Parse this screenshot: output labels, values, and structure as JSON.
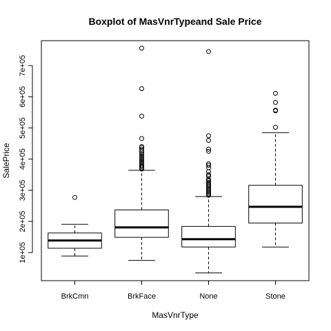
{
  "chart_data": {
    "type": "boxplot",
    "title": "Boxplot of MasVnrTypeand Sale Price",
    "xlabel": "MasVnrType",
    "ylabel": "SalePrice",
    "ylim": [
      10000,
      780000
    ],
    "yticks": [
      100000,
      200000,
      300000,
      400000,
      500000,
      600000,
      700000
    ],
    "ytick_labels": [
      "1e+05",
      "2e+05",
      "3e+05",
      "4e+05",
      "5e+05",
      "6e+05",
      "7e+05"
    ],
    "categories": [
      "BrkCmn",
      "BrkFace",
      "None",
      "Stone"
    ],
    "boxes": [
      {
        "category": "BrkCmn",
        "whisker_low": 89000,
        "q1": 114000,
        "median": 139000,
        "q3": 163000,
        "whisker_high": 191000,
        "outliers": [
          277000
        ]
      },
      {
        "category": "BrkFace",
        "whisker_low": 75000,
        "q1": 149000,
        "median": 181000,
        "q3": 237000,
        "whisker_high": 364000,
        "outliers": [
          368000,
          372000,
          376000,
          380000,
          385000,
          390000,
          395000,
          400000,
          405000,
          410000,
          415000,
          420000,
          426000,
          432000,
          438000,
          440000,
          466000,
          538000,
          626000,
          756000
        ]
      },
      {
        "category": "None",
        "whisker_low": 35000,
        "q1": 118000,
        "median": 143000,
        "q3": 184000,
        "whisker_high": 280000,
        "outliers": [
          284000,
          288000,
          292000,
          296000,
          300000,
          304000,
          308000,
          312000,
          316000,
          320000,
          325000,
          330000,
          335000,
          345000,
          350000,
          360000,
          372000,
          380000,
          385000,
          425000,
          432000,
          460000,
          475000,
          745000
        ]
      },
      {
        "category": "Stone",
        "whisker_low": 118000,
        "q1": 195000,
        "median": 247000,
        "q3": 316000,
        "whisker_high": 485000,
        "outliers": [
          502000,
          555000,
          557000,
          582000,
          611000
        ]
      }
    ]
  }
}
